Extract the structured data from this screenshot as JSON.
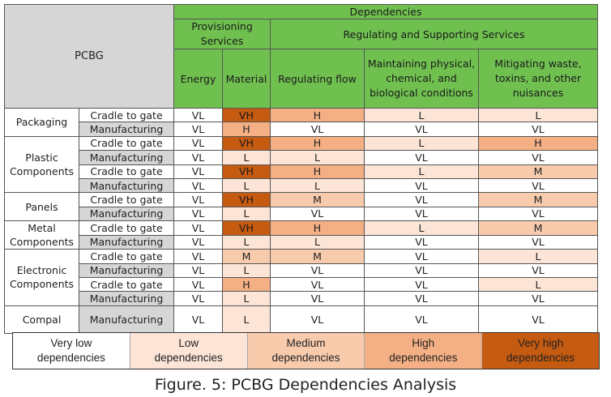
{
  "header": {
    "pcbg": "PCBG",
    "dependencies": "Dependencies",
    "provisioning": "Provisioning Services",
    "regulating_supporting": "Regulating and Supporting Services",
    "columns": [
      "Energy",
      "Material",
      "Regulating flow",
      "Maintaining physical, chemical, and biological conditions",
      "Mitigating waste, toxins, and other nuisances"
    ]
  },
  "groups": [
    {
      "name": "Packaging",
      "rows": [
        {
          "phase": "Cradle to gate",
          "values": [
            "VL",
            "VH",
            "H",
            "L",
            "L"
          ]
        },
        {
          "phase": "Manufacturing",
          "values": [
            "VL",
            "H",
            "VL",
            "VL",
            "VL"
          ]
        }
      ]
    },
    {
      "name": "Plastic Components",
      "rows": [
        {
          "phase": "Cradle to gate",
          "values": [
            "VL",
            "VH",
            "H",
            "L",
            "H"
          ]
        },
        {
          "phase": "Manufacturing",
          "values": [
            "VL",
            "L",
            "L",
            "VL",
            "VL"
          ]
        },
        {
          "phase": "Cradle to gate",
          "values": [
            "VL",
            "VH",
            "H",
            "L",
            "M"
          ]
        },
        {
          "phase": "Manufacturing",
          "values": [
            "VL",
            "L",
            "L",
            "VL",
            "VL"
          ]
        }
      ]
    },
    {
      "name": "Panels",
      "rows": [
        {
          "phase": "Cradle to gate",
          "values": [
            "VL",
            "VH",
            "M",
            "VL",
            "M"
          ]
        },
        {
          "phase": "Manufacturing",
          "values": [
            "VL",
            "L",
            "VL",
            "VL",
            "VL"
          ]
        }
      ]
    },
    {
      "name": "Metal Components",
      "rows": [
        {
          "phase": "Cradle to gate",
          "values": [
            "VL",
            "VH",
            "H",
            "L",
            "M"
          ]
        },
        {
          "phase": "Manufacturing",
          "values": [
            "VL",
            "L",
            "L",
            "VL",
            "VL"
          ]
        }
      ]
    },
    {
      "name": "Electronic Components",
      "rows": [
        {
          "phase": "Cradle to gate",
          "values": [
            "VL",
            "M",
            "M",
            "VL",
            "L"
          ]
        },
        {
          "phase": "Manufacturing",
          "values": [
            "VL",
            "L",
            "VL",
            "VL",
            "VL"
          ]
        },
        {
          "phase": "Cradle to gate",
          "values": [
            "VL",
            "H",
            "VL",
            "VL",
            "L"
          ]
        },
        {
          "phase": "Manufacturing",
          "values": [
            "VL",
            "L",
            "VL",
            "VL",
            "VL"
          ]
        }
      ]
    },
    {
      "name": "Compal",
      "rows": [
        {
          "phase": "Manufacturing",
          "values": [
            "VL",
            "L",
            "VL",
            "VL",
            "VL"
          ]
        }
      ]
    }
  ],
  "legend": [
    {
      "key": "VL",
      "label": "Very low\ndependencies",
      "color": "#ffffff"
    },
    {
      "key": "L",
      "label": "Low\ndependencies",
      "color": "#fce4d6"
    },
    {
      "key": "M",
      "label": "Medium\ndependencies",
      "color": "#f8cbad"
    },
    {
      "key": "H",
      "label": "High\ndependencies",
      "color": "#f4b084"
    },
    {
      "key": "VH",
      "label": "Very high\ndependencies",
      "color": "#c55a11"
    }
  ],
  "caption": "Figure. 5: PCBG Dependencies Analysis"
}
